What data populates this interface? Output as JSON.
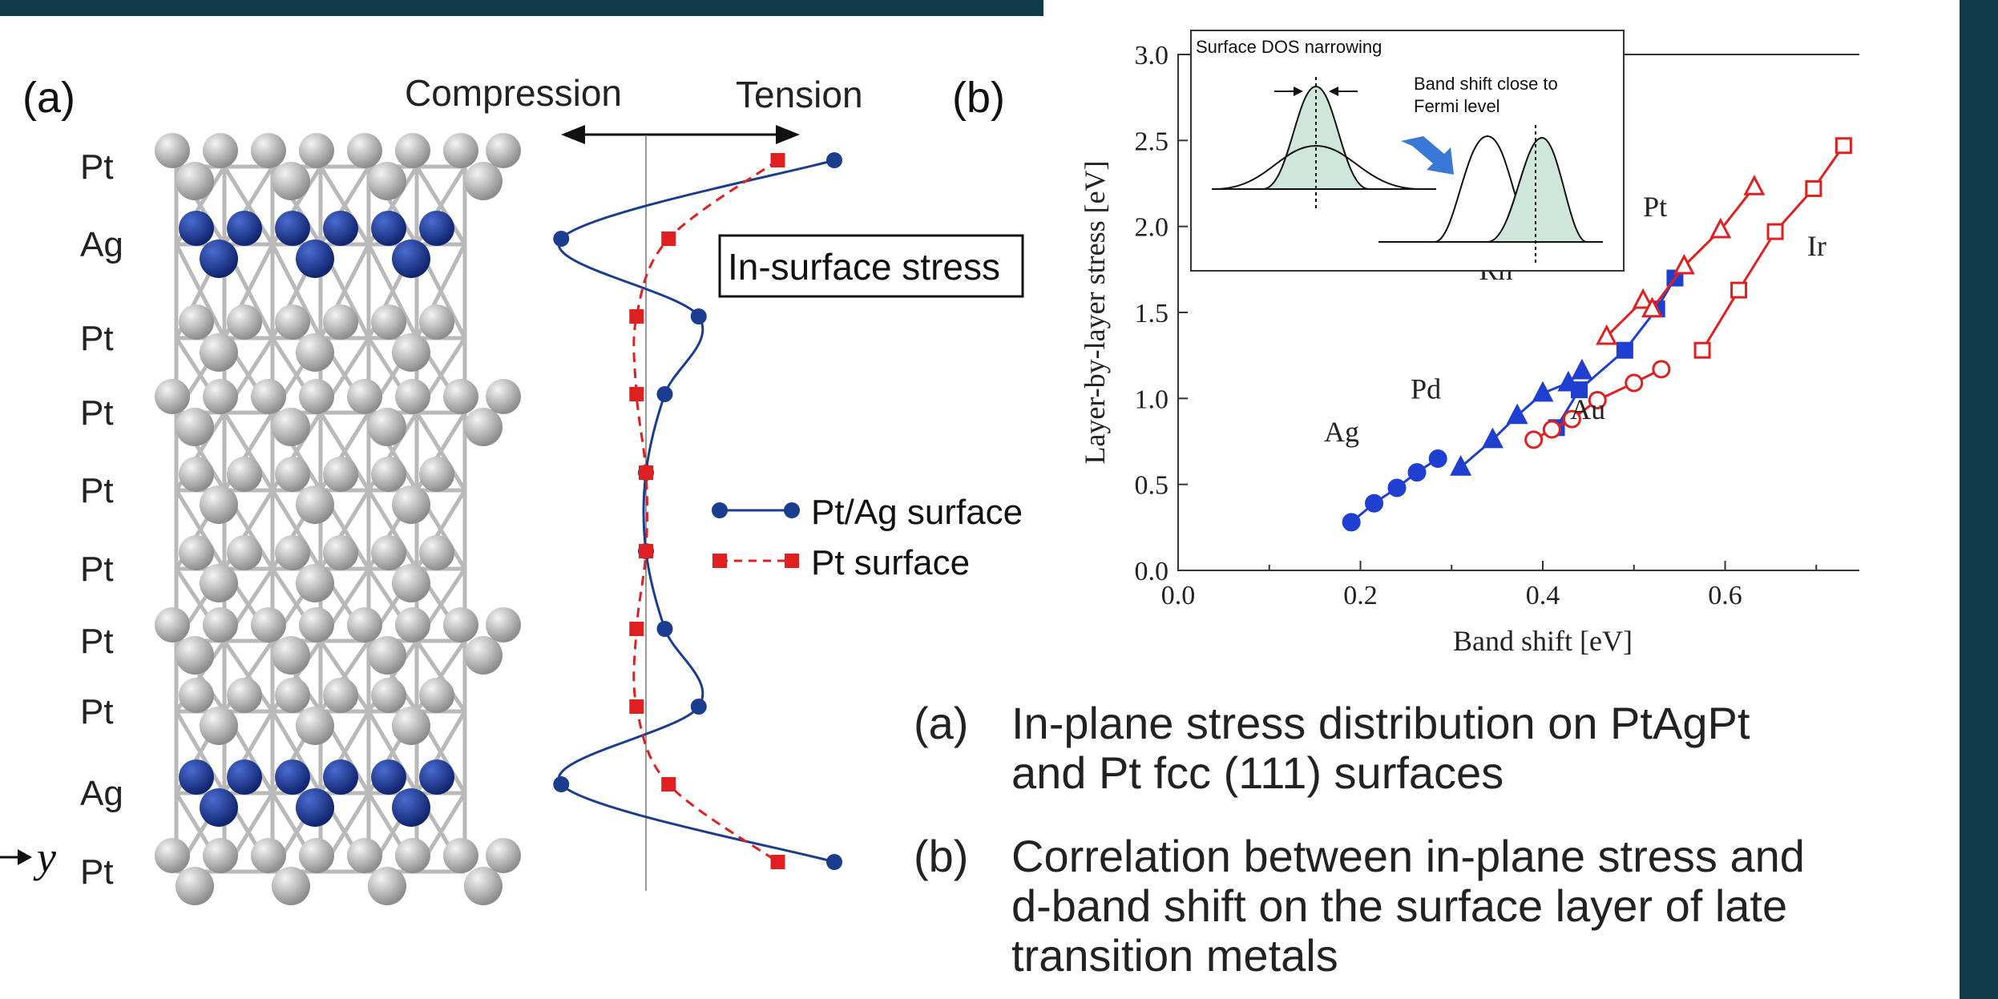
{
  "panel_a": {
    "label": "(a)",
    "arrow_left": "Compression",
    "arrow_right": "Tension",
    "box": "In-surface stress",
    "axis_label": "y",
    "layers": [
      "Pt",
      "Ag",
      "Pt",
      "Pt",
      "Pt",
      "Pt",
      "Pt",
      "Pt",
      "Ag",
      "Pt"
    ],
    "legend": [
      "Pt/Ag surface",
      "Pt surface"
    ]
  },
  "panel_b": {
    "label": "(b)",
    "inset_title": "Surface DOS narrowing",
    "inset_note": "Band shift close to Fermi level"
  },
  "caption": {
    "a_label": "(a)",
    "a_text": "In-plane stress distribution on PtAgPt and Pt fcc (111) surfaces",
    "b_label": "(b)",
    "b_text": "Correlation between in-plane stress and d-band shift on the surface layer of late transition metals"
  },
  "colors": {
    "blue": "#1f3fd0",
    "red": "#e02020",
    "dark_blue": "#1b3d8f",
    "header": "#0f3a4a",
    "inset_fill": "#cfe6dc"
  },
  "chart_data": [
    {
      "type": "line",
      "title": "",
      "orientation": "vertical-profile",
      "categories": [
        "Pt",
        "Ag",
        "Pt",
        "Pt",
        "Pt",
        "Pt",
        "Pt",
        "Pt",
        "Ag",
        "Pt"
      ],
      "series": [
        {
          "name": "Pt/Ag surface",
          "color": "#1f3fd0",
          "marker": "circle",
          "line": "solid",
          "values": [
            1.0,
            -0.45,
            0.28,
            0.1,
            0.0,
            0.0,
            0.1,
            0.28,
            -0.45,
            1.0
          ]
        },
        {
          "name": "Pt surface",
          "color": "#e02020",
          "marker": "square",
          "line": "dashed",
          "values": [
            0.7,
            0.12,
            -0.05,
            -0.05,
            0.0,
            0.0,
            -0.05,
            -0.05,
            0.12,
            0.7
          ]
        }
      ]
    },
    {
      "type": "line",
      "title": "",
      "xlabel": "Band shift [eV]",
      "ylabel": "Layer-by-layer stress [eV]",
      "xlim": [
        0.0,
        0.8
      ],
      "ylim": [
        0.0,
        3.0
      ],
      "xticks": [
        "0.0",
        "0.2",
        "0.4",
        "0.6",
        "0.8"
      ],
      "yticks": [
        "0.0",
        "0.5",
        "1.0",
        "1.5",
        "2.0",
        "2.5",
        "3.0"
      ],
      "series": [
        {
          "name": "Ag",
          "color": "#1f3fd0",
          "marker": "circle-filled",
          "points": [
            [
              0.19,
              0.28
            ],
            [
              0.215,
              0.39
            ],
            [
              0.24,
              0.48
            ],
            [
              0.262,
              0.57
            ],
            [
              0.285,
              0.65
            ]
          ]
        },
        {
          "name": "Pd",
          "color": "#1f3fd0",
          "marker": "triangle-filled",
          "points": [
            [
              0.31,
              0.6
            ],
            [
              0.345,
              0.76
            ],
            [
              0.372,
              0.9
            ],
            [
              0.4,
              1.03
            ],
            [
              0.428,
              1.09
            ],
            [
              0.443,
              1.16
            ]
          ]
        },
        {
          "name": "Rh",
          "color": "#1f3fd0",
          "marker": "square-filled",
          "points": [
            [
              0.415,
              0.83
            ],
            [
              0.44,
              1.05
            ],
            [
              0.49,
              1.28
            ],
            [
              0.525,
              1.52
            ],
            [
              0.545,
              1.7
            ]
          ]
        },
        {
          "name": "Au",
          "color": "#e02020",
          "marker": "circle-open",
          "points": [
            [
              0.39,
              0.76
            ],
            [
              0.41,
              0.82
            ],
            [
              0.432,
              0.88
            ],
            [
              0.46,
              0.99
            ],
            [
              0.5,
              1.09
            ],
            [
              0.53,
              1.17
            ]
          ]
        },
        {
          "name": "Pt",
          "color": "#e02020",
          "marker": "triangle-open",
          "points": [
            [
              0.47,
              1.36
            ],
            [
              0.51,
              1.57
            ],
            [
              0.52,
              1.52
            ],
            [
              0.555,
              1.77
            ],
            [
              0.595,
              1.98
            ],
            [
              0.632,
              2.23
            ]
          ]
        },
        {
          "name": "Ir",
          "color": "#e02020",
          "marker": "square-open",
          "points": [
            [
              0.575,
              1.28
            ],
            [
              0.615,
              1.63
            ],
            [
              0.655,
              1.97
            ],
            [
              0.697,
              2.22
            ],
            [
              0.73,
              2.47
            ]
          ]
        }
      ]
    }
  ]
}
